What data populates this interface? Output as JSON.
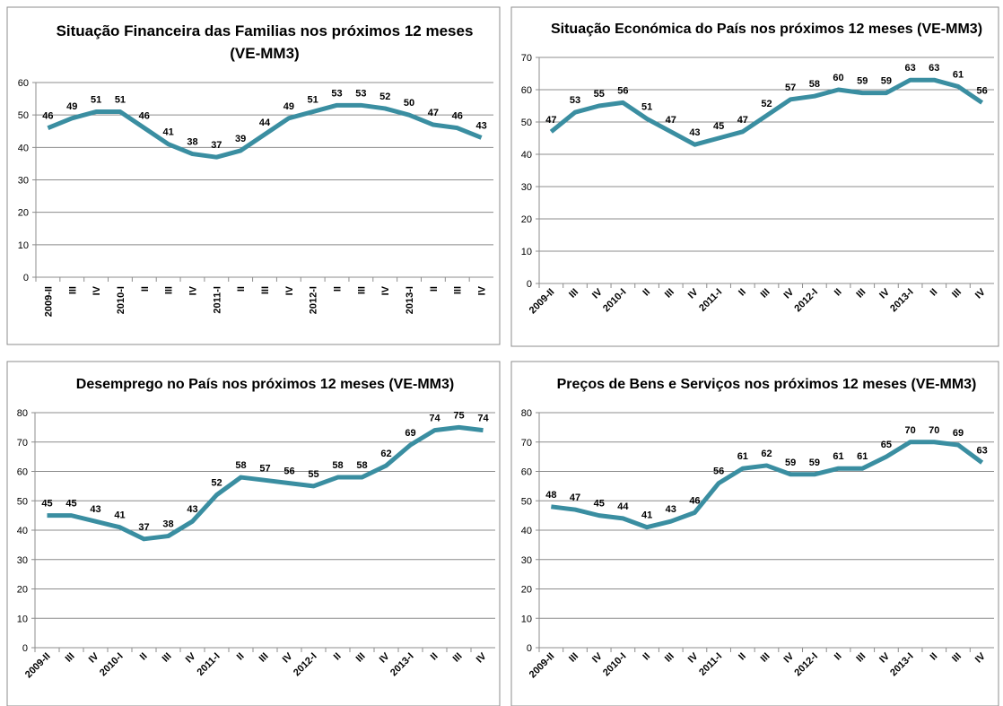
{
  "chart_data": [
    {
      "type": "line",
      "title": "Situação Financeira das Familias nos próximos 12 meses (VE-MM3)",
      "categories": [
        "2009-II",
        "III",
        "IV",
        "2010-I",
        "II",
        "III",
        "IV",
        "2011-I",
        "II",
        "III",
        "IV",
        "2012-I",
        "II",
        "III",
        "IV",
        "2013-I",
        "II",
        "III",
        "IV"
      ],
      "values": [
        46,
        49,
        51,
        51,
        46,
        41,
        38,
        37,
        39,
        44,
        49,
        51,
        53,
        53,
        52,
        50,
        47,
        46,
        43
      ],
      "color": "#3a8ea1",
      "ylim": [
        0,
        60
      ],
      "yticks": [
        0,
        10,
        20,
        30,
        40,
        50,
        60
      ],
      "grid": true
    },
    {
      "type": "line",
      "title": "Situação Económica do País nos próximos 12 meses (VE-MM3)",
      "categories": [
        "2009-II",
        "III",
        "IV",
        "2010-I",
        "II",
        "III",
        "IV",
        "2011-I",
        "II",
        "III",
        "IV",
        "2012-I",
        "II",
        "III",
        "IV",
        "2013-I",
        "II",
        "III",
        "IV"
      ],
      "values": [
        47,
        53,
        55,
        56,
        51,
        47,
        43,
        45,
        47,
        52,
        57,
        58,
        60,
        59,
        59,
        63,
        63,
        61,
        56
      ],
      "color": "#3a8ea1",
      "ylim": [
        0,
        70
      ],
      "yticks": [
        0,
        10,
        20,
        30,
        40,
        50,
        60,
        70
      ],
      "grid": true
    },
    {
      "type": "line",
      "title": "Desemprego no País nos próximos 12 meses (VE-MM3)",
      "categories": [
        "2009-II",
        "III",
        "IV",
        "2010-I",
        "II",
        "III",
        "IV",
        "2011-I",
        "II",
        "III",
        "IV",
        "2012-I",
        "II",
        "III",
        "IV",
        "2013-I",
        "II",
        "III",
        "IV"
      ],
      "values": [
        45,
        45,
        43,
        41,
        37,
        38,
        43,
        52,
        58,
        57,
        56,
        55,
        58,
        58,
        62,
        69,
        74,
        75,
        74
      ],
      "color": "#3a8ea1",
      "ylim": [
        0,
        80
      ],
      "yticks": [
        0,
        10,
        20,
        30,
        40,
        50,
        60,
        70,
        80
      ],
      "grid": true
    },
    {
      "type": "line",
      "title": "Preços de Bens e Serviços nos próximos 12 meses (VE-MM3)",
      "categories": [
        "2009-II",
        "III",
        "IV",
        "2010-I",
        "II",
        "III",
        "IV",
        "2011-I",
        "II",
        "III",
        "IV",
        "2012-I",
        "II",
        "III",
        "IV",
        "2013-I",
        "II",
        "III",
        "IV"
      ],
      "values": [
        48,
        47,
        45,
        44,
        41,
        43,
        46,
        56,
        61,
        62,
        59,
        59,
        61,
        61,
        65,
        70,
        70,
        69,
        63
      ],
      "color": "#3a8ea1",
      "ylim": [
        0,
        80
      ],
      "yticks": [
        0,
        10,
        20,
        30,
        40,
        50,
        60,
        70,
        80
      ],
      "grid": true
    }
  ]
}
